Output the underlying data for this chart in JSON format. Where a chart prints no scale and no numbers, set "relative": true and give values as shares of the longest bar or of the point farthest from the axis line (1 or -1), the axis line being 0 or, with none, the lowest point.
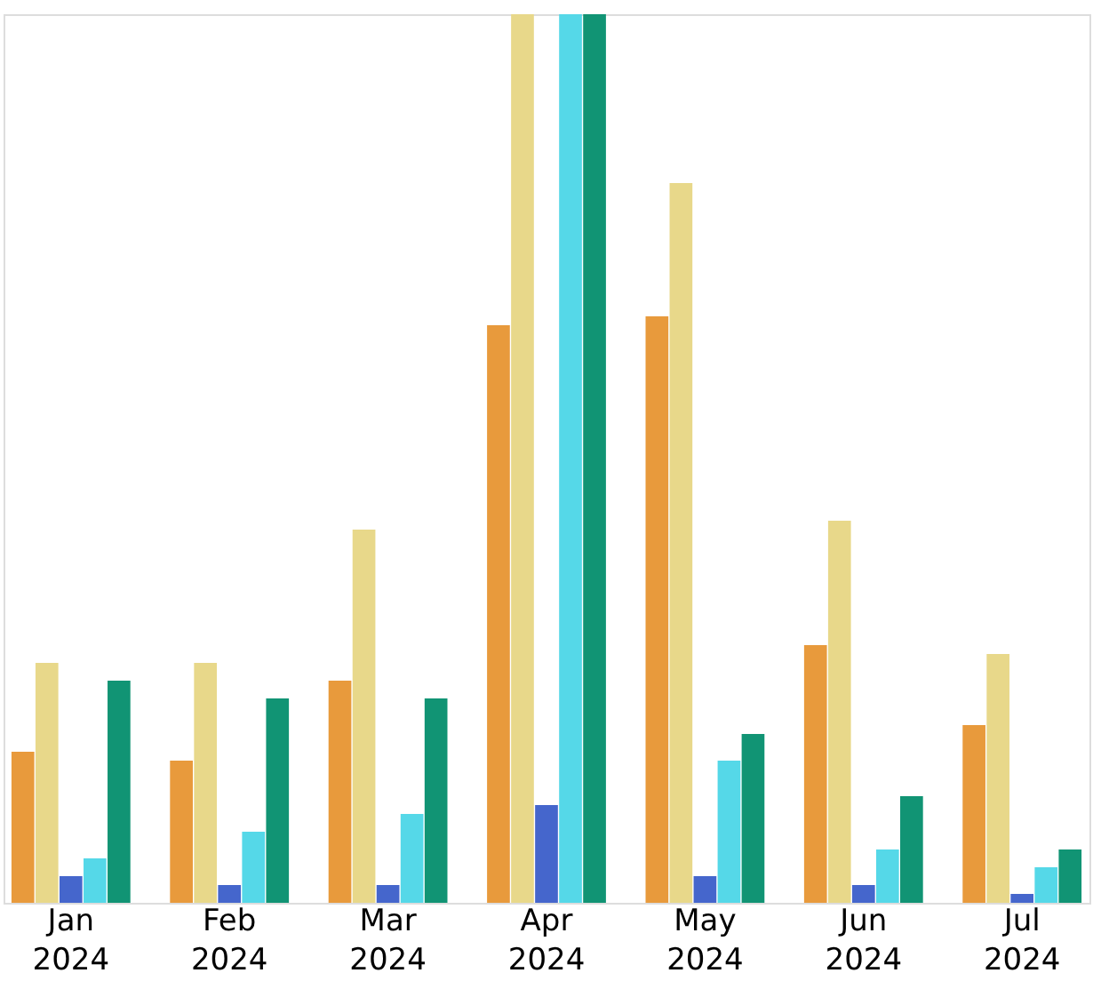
{
  "chart_data": {
    "type": "bar",
    "relative": true,
    "grid": false,
    "legend": false,
    "categories": [
      "Jan 2024",
      "Feb 2024",
      "Mar 2024",
      "Apr 2024",
      "May 2024",
      "Jun 2024",
      "Jul 2024"
    ],
    "series": [
      {
        "color": "#e89a3c",
        "values": [
          0.17,
          0.16,
          0.25,
          0.65,
          0.66,
          0.29,
          0.2
        ]
      },
      {
        "color": "#e8d88a",
        "values": [
          0.27,
          0.27,
          0.42,
          1,
          0.81,
          0.43,
          0.28
        ]
      },
      {
        "color": "#4566cc",
        "values": [
          0.03,
          0.02,
          0.02,
          0.11,
          0.03,
          0.02,
          0.01
        ]
      },
      {
        "color": "#55d8e8",
        "values": [
          0.05,
          0.08,
          0.1,
          1,
          0.16,
          0.06,
          0.04
        ]
      },
      {
        "color": "#119474",
        "values": [
          0.25,
          0.23,
          0.23,
          1,
          0.19,
          0.12,
          0.06
        ]
      }
    ]
  }
}
